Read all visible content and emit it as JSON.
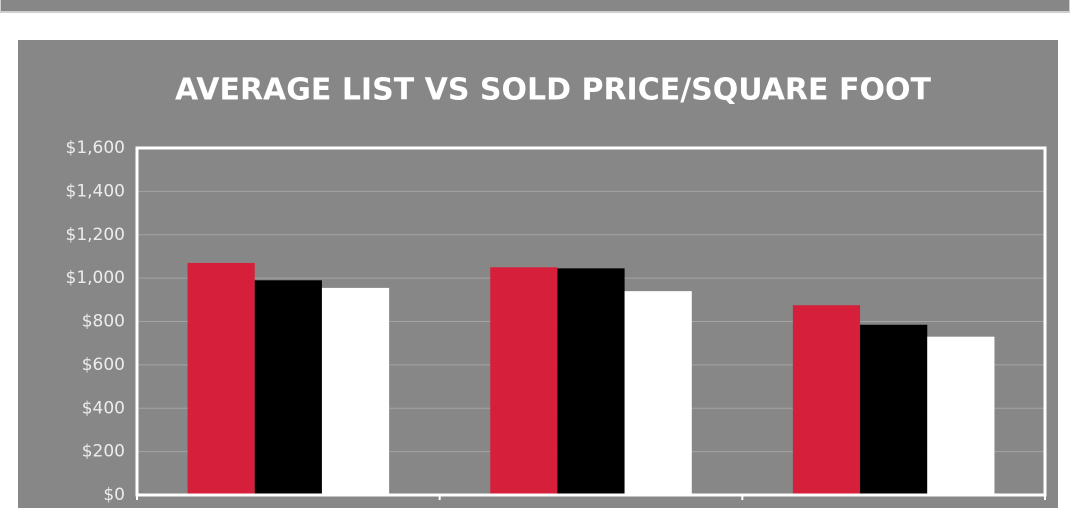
{
  "chart_data": {
    "type": "bar",
    "title": "AVERAGE LIST VS SOLD PRICE/SQUARE FOOT",
    "categories": [
      null,
      null,
      null
    ],
    "series": [
      {
        "color": "#d6203b",
        "values": [
          1070,
          1050,
          875
        ]
      },
      {
        "color": "#000000",
        "values": [
          990,
          1045,
          785
        ]
      },
      {
        "color": "#ffffff",
        "values": [
          955,
          940,
          730
        ]
      }
    ],
    "ylim": [
      0,
      1600
    ],
    "yticks": [
      {
        "value": 0,
        "label": "$0"
      },
      {
        "value": 200,
        "label": "$200"
      },
      {
        "value": 400,
        "label": "$400"
      },
      {
        "value": 600,
        "label": "$600"
      },
      {
        "value": 800,
        "label": "$800"
      },
      {
        "value": 1000,
        "label": "$1,000"
      },
      {
        "value": 1200,
        "label": "$1,200"
      },
      {
        "value": 1400,
        "label": "$1,400"
      },
      {
        "value": 1600,
        "label": "$1,600"
      }
    ],
    "grid": true
  }
}
